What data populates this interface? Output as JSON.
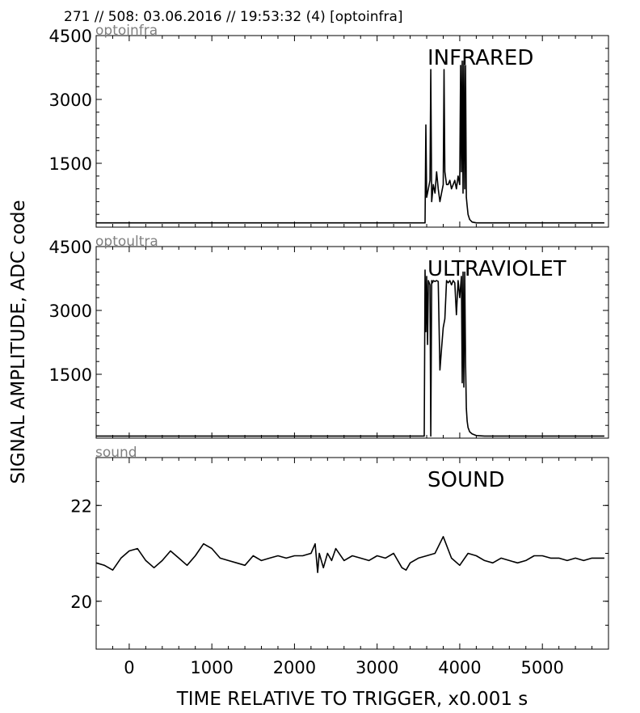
{
  "header": "271 // 508:   03.06.2016 // 19:53:32 (4)  [optoinfra]",
  "ylabel": "SIGNAL AMPLITUDE,  ADC code",
  "xlabel": "TIME RELATIVE TO TRIGGER,   x0.001 s",
  "chart_data": [
    {
      "type": "line",
      "title": "INFRARED",
      "channel": "optoinfra",
      "xlim": [
        -400,
        5800
      ],
      "ylim": [
        0,
        4500
      ],
      "yticks": [
        1500,
        3000,
        4500
      ],
      "ytick_labels": [
        "1500",
        "3000",
        "4500"
      ],
      "series": [
        {
          "x": [
            -400,
            3500,
            3580,
            3590,
            3600,
            3620,
            3640,
            3650,
            3660,
            3680,
            3700,
            3720,
            3740,
            3760,
            3780,
            3800,
            3810,
            3820,
            3840,
            3860,
            3880,
            3900,
            3920,
            3940,
            3960,
            3980,
            4000,
            4010,
            4020,
            4030,
            4040,
            4050,
            4060,
            4070,
            4080,
            4090,
            4100,
            4120,
            4150,
            4200,
            4300,
            4500,
            5000,
            5750
          ],
          "y": [
            100,
            100,
            100,
            2400,
            700,
            900,
            1100,
            3700,
            600,
            1000,
            800,
            1300,
            900,
            600,
            800,
            1000,
            3700,
            1300,
            1000,
            1000,
            1100,
            900,
            1000,
            1100,
            900,
            1200,
            1000,
            3800,
            1300,
            3900,
            800,
            3900,
            900,
            3800,
            700,
            500,
            300,
            180,
            120,
            100,
            100,
            100,
            100,
            100
          ]
        }
      ]
    },
    {
      "type": "line",
      "title": "ULTRAVIOLET",
      "channel": "optoultra",
      "xlim": [
        -400,
        5800
      ],
      "ylim": [
        0,
        4500
      ],
      "yticks": [
        1500,
        3000,
        4500
      ],
      "ytick_labels": [
        "1500",
        "3000",
        "4500"
      ],
      "series": [
        {
          "x": [
            -400,
            3570,
            3580,
            3590,
            3600,
            3610,
            3620,
            3640,
            3650,
            3660,
            3670,
            3680,
            3700,
            3720,
            3740,
            3760,
            3780,
            3800,
            3820,
            3840,
            3860,
            3880,
            3900,
            3920,
            3940,
            3960,
            3980,
            4000,
            4020,
            4030,
            4040,
            4050,
            4060,
            4070,
            4080,
            4090,
            4100,
            4120,
            4150,
            4200,
            4300,
            5000,
            5750
          ],
          "y": [
            50,
            50,
            3950,
            2500,
            3800,
            2200,
            3700,
            3600,
            50,
            3700,
            3650,
            3700,
            3680,
            3700,
            3680,
            1600,
            2100,
            2600,
            2800,
            3700,
            3650,
            3700,
            3600,
            3700,
            3650,
            2900,
            3700,
            3300,
            3800,
            1300,
            3900,
            1200,
            3900,
            1800,
            700,
            400,
            250,
            150,
            100,
            60,
            50,
            50,
            50
          ]
        }
      ]
    },
    {
      "type": "line",
      "title": "SOUND",
      "channel": "sound",
      "xlim": [
        -400,
        5800
      ],
      "ylim": [
        19,
        23
      ],
      "yticks": [
        20,
        22
      ],
      "ytick_labels": [
        "20",
        "22"
      ],
      "series": [
        {
          "x": [
            -400,
            -300,
            -200,
            -100,
            0,
            100,
            200,
            300,
            400,
            500,
            600,
            700,
            800,
            900,
            1000,
            1100,
            1200,
            1300,
            1400,
            1500,
            1600,
            1700,
            1800,
            1900,
            2000,
            2100,
            2200,
            2250,
            2280,
            2300,
            2350,
            2400,
            2450,
            2500,
            2600,
            2700,
            2800,
            2900,
            3000,
            3100,
            3200,
            3300,
            3350,
            3400,
            3500,
            3600,
            3700,
            3800,
            3900,
            4000,
            4100,
            4200,
            4300,
            4400,
            4500,
            4600,
            4700,
            4800,
            4900,
            5000,
            5100,
            5200,
            5300,
            5400,
            5500,
            5600,
            5700,
            5750
          ],
          "y": [
            20.8,
            20.75,
            20.65,
            20.9,
            21.05,
            21.1,
            20.85,
            20.7,
            20.85,
            21.05,
            20.9,
            20.75,
            20.95,
            21.2,
            21.1,
            20.9,
            20.85,
            20.8,
            20.75,
            20.95,
            20.85,
            20.9,
            20.95,
            20.9,
            20.95,
            20.95,
            21.0,
            21.2,
            20.6,
            21.0,
            20.7,
            21.0,
            20.85,
            21.1,
            20.85,
            20.95,
            20.9,
            20.85,
            20.95,
            20.9,
            21.0,
            20.7,
            20.65,
            20.8,
            20.9,
            20.95,
            21.0,
            21.35,
            20.9,
            20.75,
            21.0,
            20.95,
            20.85,
            20.8,
            20.9,
            20.85,
            20.8,
            20.85,
            20.95,
            20.95,
            20.9,
            20.9,
            20.85,
            20.9,
            20.85,
            20.9,
            20.9,
            20.9
          ]
        }
      ]
    }
  ],
  "xticks": [
    0,
    1000,
    2000,
    3000,
    4000,
    5000
  ],
  "xtick_labels": [
    "0",
    "1000",
    "2000",
    "3000",
    "4000",
    "5000"
  ]
}
